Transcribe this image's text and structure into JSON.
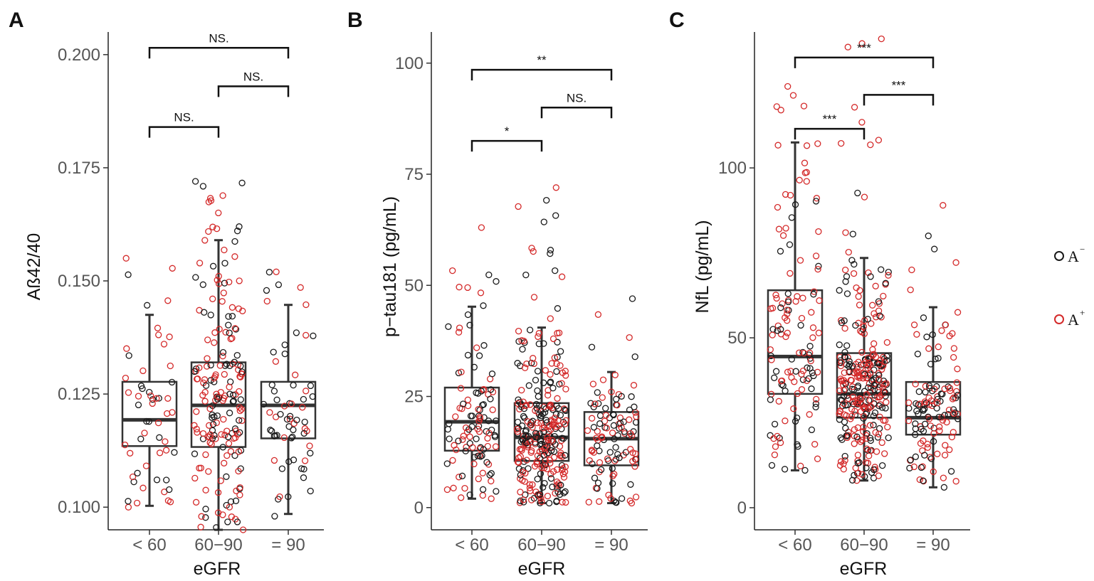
{
  "legend": {
    "items": [
      {
        "label": "A",
        "superscript": "−",
        "color": "#1a1a1a"
      },
      {
        "label": "A",
        "superscript": "+",
        "color": "#d42a2a"
      }
    ]
  },
  "chart_data": [
    {
      "panel": "A",
      "type": "box",
      "title": "",
      "xlabel": "eGFR",
      "ylabel": "Aß42/40",
      "categories": [
        "< 60",
        "60−90",
        "= 90"
      ],
      "ylim": [
        0.095,
        0.205
      ],
      "yticks": [
        0.1,
        0.125,
        0.15,
        0.175,
        0.2
      ],
      "ytick_labels": [
        "0.100",
        "0.125",
        "0.150",
        "0.175",
        "0.200"
      ],
      "boxes": [
        {
          "min": 0.1003,
          "q1": 0.1135,
          "median": 0.1193,
          "q3": 0.1277,
          "max": 0.1425
        },
        {
          "min": 0.095,
          "q1": 0.1133,
          "median": 0.1225,
          "q3": 0.132,
          "max": 0.159
        },
        {
          "min": 0.0985,
          "q1": 0.1152,
          "median": 0.1225,
          "q3": 0.1277,
          "max": 0.1447
        }
      ],
      "point_ranges": [
        [
          0.1,
          0.155
        ],
        [
          0.095,
          0.172
        ],
        [
          0.098,
          0.152
        ]
      ],
      "point_counts": [
        55,
        190,
        65
      ],
      "red_fraction": [
        0.5,
        0.55,
        0.45
      ],
      "comparisons": [
        {
          "from": 0,
          "to": 2,
          "label": "NS.",
          "y": 0.2015
        },
        {
          "from": 1,
          "to": 2,
          "label": "NS.",
          "y": 0.193
        },
        {
          "from": 0,
          "to": 1,
          "label": "NS.",
          "y": 0.184
        }
      ]
    },
    {
      "panel": "B",
      "type": "box",
      "title": "",
      "xlabel": "eGFR",
      "ylabel": "p−tau181 (pg/mL)",
      "categories": [
        "< 60",
        "60−90",
        "= 90"
      ],
      "ylim": [
        -5,
        107
      ],
      "yticks": [
        0,
        25,
        50,
        75,
        100
      ],
      "ytick_labels": [
        "0",
        "25",
        "50",
        "75",
        "100"
      ],
      "boxes": [
        {
          "min": 2,
          "q1": 12.8,
          "median": 19.3,
          "q3": 27.0,
          "max": 45.2
        },
        {
          "min": 1,
          "q1": 10.5,
          "median": 15.8,
          "q3": 23.5,
          "max": 40.5
        },
        {
          "min": 1,
          "q1": 9.5,
          "median": 15.5,
          "q3": 21.5,
          "max": 30.5
        }
      ],
      "point_ranges": [
        [
          2,
          63
        ],
        [
          1,
          72
        ],
        [
          1,
          47
        ]
      ],
      "point_counts": [
        110,
        300,
        110
      ],
      "red_fraction": [
        0.5,
        0.55,
        0.5
      ],
      "comparisons": [
        {
          "from": 0,
          "to": 2,
          "label": "**",
          "y": 98.5
        },
        {
          "from": 1,
          "to": 2,
          "label": "NS.",
          "y": 90.0
        },
        {
          "from": 0,
          "to": 1,
          "label": "*",
          "y": 82.5
        }
      ]
    },
    {
      "panel": "C",
      "type": "box",
      "title": "",
      "xlabel": "eGFR",
      "ylabel": "NfL (pg/mL)",
      "categories": [
        "< 60",
        "60−90",
        "= 90"
      ],
      "ylim": [
        -6.5,
        140
      ],
      "yticks": [
        0,
        50,
        100
      ],
      "ytick_labels": [
        "0",
        "50",
        "100"
      ],
      "boxes": [
        {
          "min": 11,
          "q1": 33.5,
          "median": 44.5,
          "q3": 64.0,
          "max": 107.5
        },
        {
          "min": 8,
          "q1": 26.5,
          "median": 33.5,
          "q3": 45.5,
          "max": 73.5
        },
        {
          "min": 6,
          "q1": 21.5,
          "median": 26.5,
          "q3": 37.0,
          "max": 59.0
        }
      ],
      "point_ranges": [
        [
          11,
          124
        ],
        [
          8,
          138
        ],
        [
          6,
          89
        ]
      ],
      "point_counts": [
        130,
        320,
        130
      ],
      "red_fraction": [
        0.6,
        0.6,
        0.55
      ],
      "comparisons": [
        {
          "from": 0,
          "to": 2,
          "label": "***",
          "y": 132.5
        },
        {
          "from": 1,
          "to": 2,
          "label": "***",
          "y": 121.5
        },
        {
          "from": 0,
          "to": 1,
          "label": "***",
          "y": 111.5
        }
      ]
    }
  ]
}
